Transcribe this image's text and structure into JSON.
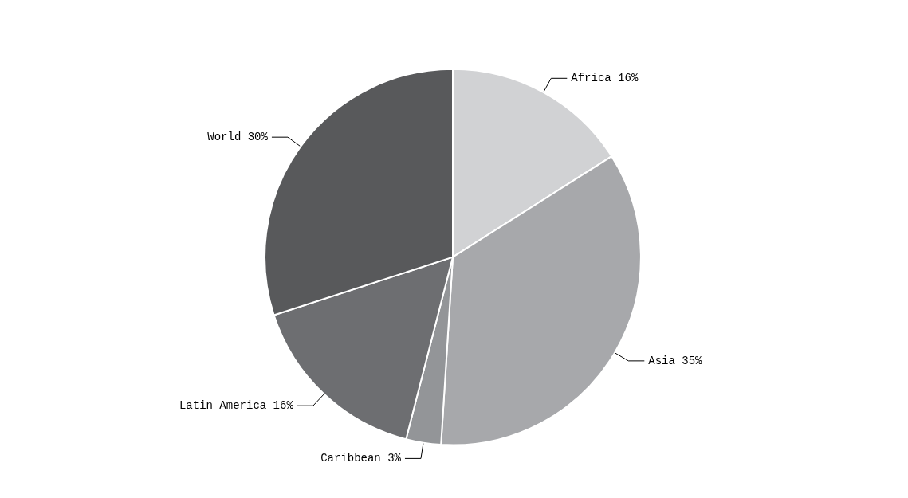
{
  "chart_data": {
    "type": "pie",
    "categories": [
      "Africa",
      "Asia",
      "Caribbean",
      "Latin America",
      "World"
    ],
    "values": [
      16,
      35,
      3,
      16,
      30
    ],
    "value_labels": [
      "16%",
      "35%",
      "3%",
      "16%",
      "30%"
    ],
    "colors": [
      "#d1d2d4",
      "#a7a8ab",
      "#939598",
      "#6d6e71",
      "#58595b"
    ]
  }
}
